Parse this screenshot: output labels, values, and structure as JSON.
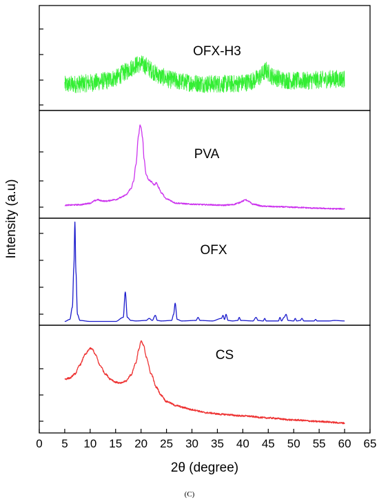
{
  "chart_data": {
    "type": "line",
    "layout": "stacked-panels",
    "xlabel": "2θ (degree)",
    "ylabel": "Intensity (a.u)",
    "xlim": [
      0,
      65
    ],
    "xticks": [
      0,
      5,
      10,
      15,
      20,
      25,
      30,
      35,
      40,
      45,
      50,
      55,
      60,
      65
    ],
    "caption": "(C)",
    "grid": false,
    "legend": "none",
    "panels": [
      {
        "name": "OFX-H3",
        "color": "#33ee33",
        "noise": 0.09,
        "ylim": [
          0,
          1
        ],
        "x": [
          5,
          8,
          10,
          13,
          15,
          17,
          18,
          19,
          20,
          21,
          22,
          23,
          24,
          26,
          28,
          30,
          33,
          36,
          38,
          40,
          42,
          43,
          44,
          44.5,
          45,
          46,
          48,
          50,
          52,
          55,
          58,
          60
        ],
        "values": [
          0.23,
          0.24,
          0.25,
          0.27,
          0.3,
          0.36,
          0.4,
          0.43,
          0.44,
          0.42,
          0.38,
          0.34,
          0.31,
          0.28,
          0.26,
          0.25,
          0.24,
          0.24,
          0.24,
          0.25,
          0.27,
          0.3,
          0.34,
          0.38,
          0.35,
          0.31,
          0.28,
          0.27,
          0.27,
          0.28,
          0.29,
          0.29
        ]
      },
      {
        "name": "PVA",
        "color": "#cc33ee",
        "noise": 0.006,
        "ylim": [
          0,
          1
        ],
        "x": [
          5,
          8,
          10,
          11,
          11.5,
          12,
          13,
          15,
          16,
          17,
          18,
          18.5,
          19,
          19.5,
          19.8,
          20,
          20.3,
          20.6,
          21,
          21.5,
          22,
          22.6,
          23,
          23.5,
          24,
          25,
          27,
          30,
          33,
          36,
          38,
          39,
          40,
          40.5,
          41,
          42,
          44,
          47,
          50,
          55,
          58,
          60
        ],
        "values": [
          0.1,
          0.105,
          0.12,
          0.145,
          0.155,
          0.145,
          0.14,
          0.155,
          0.175,
          0.2,
          0.26,
          0.33,
          0.5,
          0.78,
          0.88,
          0.86,
          0.76,
          0.55,
          0.4,
          0.35,
          0.33,
          0.3,
          0.32,
          0.27,
          0.22,
          0.16,
          0.12,
          0.11,
          0.105,
          0.1,
          0.105,
          0.12,
          0.14,
          0.155,
          0.14,
          0.11,
          0.09,
          0.085,
          0.08,
          0.07,
          0.065,
          0.065
        ]
      },
      {
        "name": "OFX",
        "color": "#1a1acc",
        "noise": 0,
        "ylim": [
          0,
          1
        ],
        "x": [
          5,
          6,
          6.5,
          6.8,
          7,
          7.2,
          7.5,
          8,
          10,
          15,
          16.5,
          16.9,
          17.3,
          18,
          19,
          21,
          21.6,
          22.2,
          22.8,
          23.2,
          24,
          26,
          26.4,
          26.7,
          27.1,
          28,
          30.8,
          31.2,
          31.6,
          34,
          35.8,
          36.1,
          36.4,
          36.7,
          37.1,
          38,
          39,
          39.3,
          39.6,
          42,
          42.6,
          43,
          44,
          44.3,
          44.6,
          47,
          47.3,
          47.6,
          48.1,
          48.5,
          48.9,
          50,
          50.3,
          50.6,
          51.3,
          51.6,
          52,
          54,
          54.3,
          54.6,
          57,
          58,
          60
        ],
        "values": [
          0.01,
          0.03,
          0.15,
          0.55,
          0.99,
          0.5,
          0.08,
          0.02,
          0.01,
          0.01,
          0.05,
          0.3,
          0.05,
          0.02,
          0.015,
          0.02,
          0.04,
          0.02,
          0.07,
          0.02,
          0.015,
          0.02,
          0.08,
          0.19,
          0.03,
          0.015,
          0.02,
          0.05,
          0.02,
          0.015,
          0.04,
          0.07,
          0.03,
          0.08,
          0.02,
          0.015,
          0.02,
          0.05,
          0.02,
          0.015,
          0.05,
          0.02,
          0.015,
          0.04,
          0.015,
          0.015,
          0.05,
          0.015,
          0.05,
          0.08,
          0.02,
          0.015,
          0.04,
          0.015,
          0.02,
          0.04,
          0.015,
          0.015,
          0.03,
          0.015,
          0.015,
          0.02,
          0.015
        ]
      },
      {
        "name": "CS",
        "color": "#ee3333",
        "noise": 0.008,
        "ylim": [
          0,
          1
        ],
        "x": [
          5,
          6,
          7,
          8,
          9,
          10,
          10.5,
          11,
          12,
          13,
          14,
          15,
          16,
          17,
          18,
          19,
          19.5,
          20,
          20.5,
          21,
          22,
          23,
          24,
          25,
          27,
          28.5,
          30,
          33,
          36,
          40,
          45,
          50,
          55,
          60
        ],
        "values": [
          0.5,
          0.51,
          0.55,
          0.64,
          0.74,
          0.8,
          0.79,
          0.74,
          0.63,
          0.55,
          0.5,
          0.47,
          0.46,
          0.48,
          0.54,
          0.66,
          0.78,
          0.87,
          0.83,
          0.72,
          0.55,
          0.42,
          0.34,
          0.28,
          0.24,
          0.22,
          0.2,
          0.17,
          0.155,
          0.14,
          0.12,
          0.1,
          0.085,
          0.07
        ]
      }
    ]
  }
}
